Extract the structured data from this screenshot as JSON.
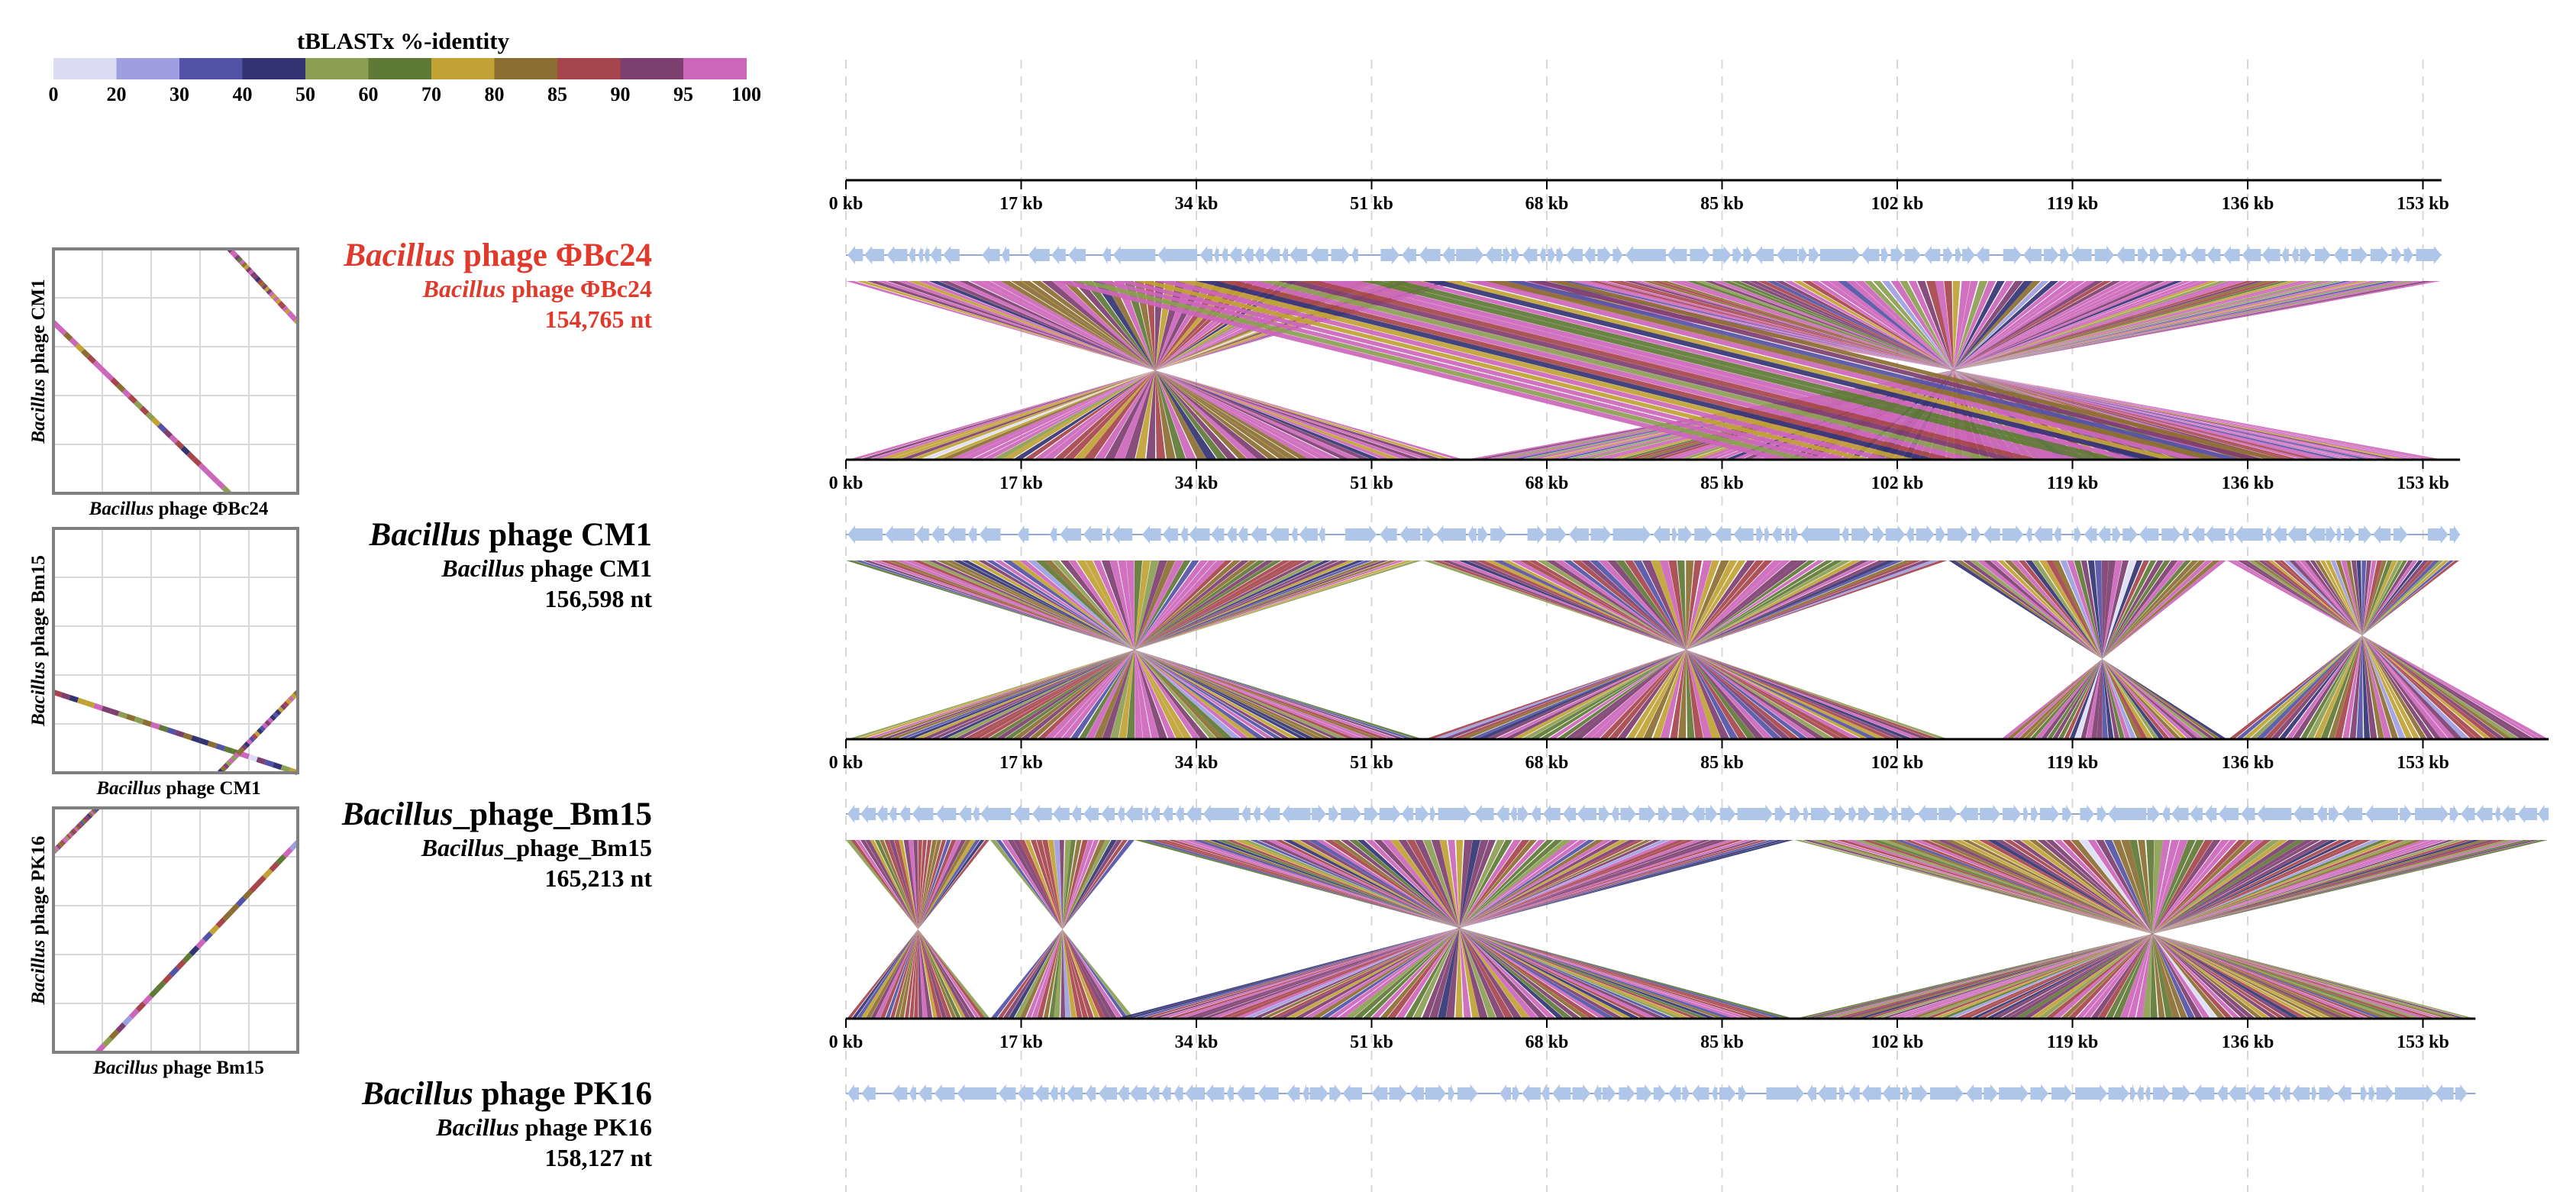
{
  "legend": {
    "title": "tBLASTx %-identity",
    "stops": [
      "0",
      "20",
      "30",
      "40",
      "50",
      "60",
      "70",
      "80",
      "85",
      "90",
      "95",
      "100"
    ],
    "colors": [
      "#dcdcf4",
      "#9e9ee0",
      "#5252a6",
      "#333373",
      "#8c9e52",
      "#5e7a36",
      "#c0a235",
      "#8c6e32",
      "#a6454c",
      "#7d3e70",
      "#cc66bb"
    ]
  },
  "gene_color": "#b0c6e8",
  "axis_ticks": [
    "0 kb",
    "17 kb",
    "34 kb",
    "51 kb",
    "68 kb",
    "85 kb",
    "102 kb",
    "119 kb",
    "136 kb",
    "153 kb"
  ],
  "genomes": [
    {
      "name_italic": "Bacillus",
      "name_rest": " phage ΦBc24",
      "sub_italic": "Bacillus",
      "sub_rest": " phage ΦBc24",
      "length": "154,765 nt",
      "length_kb": 154.8,
      "highlight": true
    },
    {
      "name_italic": "Bacillus",
      "name_rest": " phage CM1",
      "sub_italic": "Bacillus",
      "sub_rest": " phage CM1",
      "length": "156,598 nt",
      "length_kb": 156.6,
      "highlight": false
    },
    {
      "name_italic": "Bacillus",
      "name_rest": "_phage_Bm15",
      "sub_italic": "Bacillus",
      "sub_rest": "_phage_Bm15",
      "length": "165,213 nt",
      "length_kb": 165.2,
      "highlight": false
    },
    {
      "name_italic": "Bacillus",
      "name_rest": " phage PK16",
      "sub_italic": "Bacillus",
      "sub_rest": " phage PK16",
      "length": "158,127 nt",
      "length_kb": 158.1,
      "highlight": false
    }
  ],
  "highlight_color": "#e03a2c",
  "dotplots": [
    {
      "x_italic": "Bacillus",
      "x_rest": " phage ΦBc24",
      "y_italic": "Bacillus",
      "y_rest": " phage CM1"
    },
    {
      "x_italic": "Bacillus",
      "x_rest": " phage CM1",
      "y_italic": "Bacillus",
      "y_rest": " phage Bm15"
    },
    {
      "x_italic": "Bacillus",
      "x_rest": " phage Bm15",
      "y_italic": "Bacillus",
      "y_rest": " phage PK16"
    }
  ]
}
